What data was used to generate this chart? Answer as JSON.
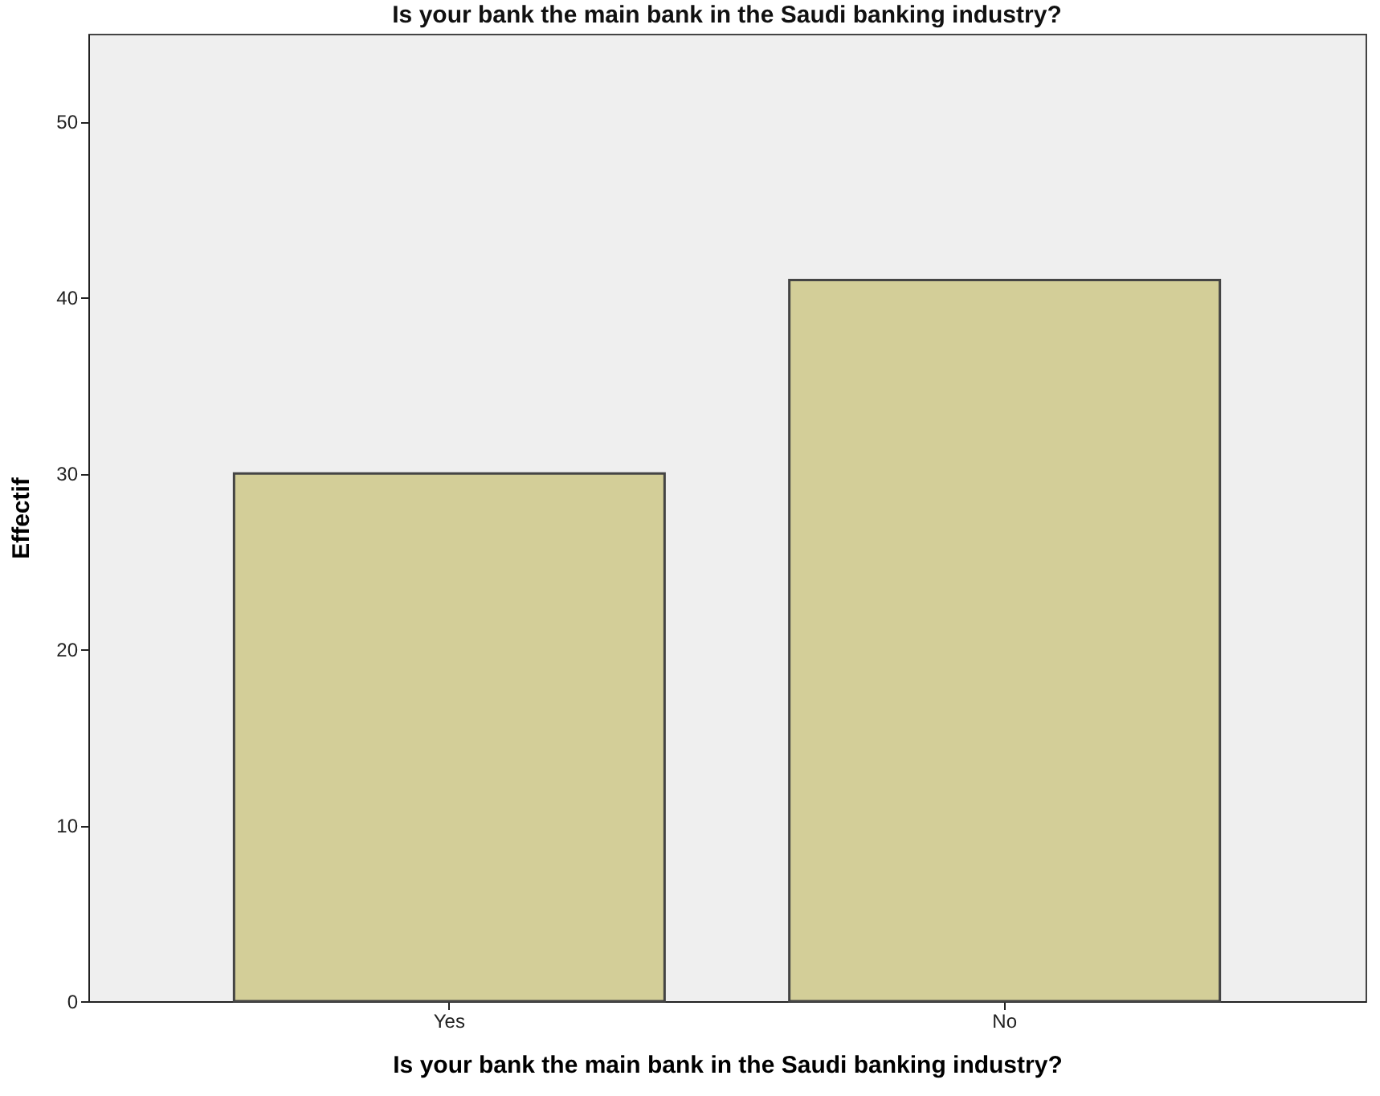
{
  "chart_data": {
    "type": "bar",
    "title": "Is your bank the main bank in the Saudi banking industry?",
    "xlabel": "Is your bank the main bank in the Saudi banking industry?",
    "ylabel": "Effectif",
    "categories": [
      "Yes",
      "No"
    ],
    "values": [
      30,
      41
    ],
    "color": "#d3ce98",
    "ylim": [
      0,
      55
    ],
    "yticks": [
      0,
      10,
      20,
      30,
      40,
      50
    ],
    "grid": false
  }
}
